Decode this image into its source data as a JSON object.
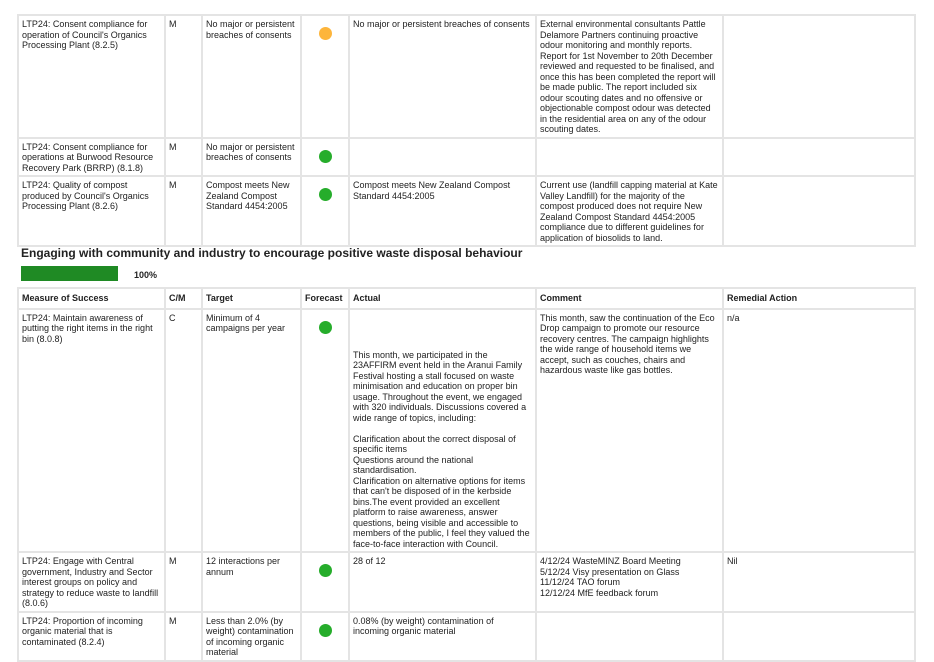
{
  "colors": {
    "amber": "#fdb53b",
    "green": "#26ad2b",
    "progress": "#1f8a24"
  },
  "table1": {
    "rows": [
      {
        "measure": "LTP24: Consent compliance for operation of Council's Organics Processing Plant (8.2.5)",
        "cm": "M",
        "target": "No major or persistent breaches of consents",
        "forecast": "amber",
        "actual": "No major or persistent breaches of consents",
        "comment": "External environmental consultants Pattle Delamore Partners continuing proactive odour monitoring and monthly reports. Report for 1st November to 20th December reviewed and requested to be finalised, and once this has been completed the report will be made public. The report included six odour scouting dates and no offensive or objectionable compost odour was detected in the residential area on any of the odour scouting dates.",
        "remedial": ""
      },
      {
        "measure": "LTP24: Consent compliance for operations at Burwood Resource Recovery Park (BRRP) (8.1.8)",
        "cm": "M",
        "target": "No major or persistent breaches of consents",
        "forecast": "green",
        "actual": "",
        "comment": "",
        "remedial": ""
      },
      {
        "measure": "LTP24: Quality of compost produced by Council's Organics Processing Plant (8.2.6)",
        "cm": "M",
        "target": "Compost meets New Zealand Compost Standard 4454:2005",
        "forecast": "green",
        "actual": "Compost meets New Zealand Compost Standard 4454:2005",
        "comment": "Current use (landfill capping material at Kate Valley Landfill) for the majority of the compost produced does not require New Zealand Compost Standard 4454:2005 compliance due to different guidelines for application of biosolids to land.",
        "remedial": ""
      }
    ]
  },
  "section": {
    "title": "Engaging with community and industry to encourage positive waste disposal behaviour",
    "progress_percent": 100,
    "progress_label": "100%"
  },
  "table2": {
    "headers": {
      "measure": "Measure of Success",
      "cm": "C/M",
      "target": "Target",
      "forecast": "Forecast",
      "actual": "Actual",
      "comment": "Comment",
      "remedial": "Remedial Action"
    },
    "rows": [
      {
        "measure": "LTP24: Maintain awareness of putting the right items in the right bin (8.0.8)",
        "cm": "C",
        "target": "Minimum of 4 campaigns per year",
        "forecast": "green",
        "actual": "This month, we participated in the 23AFFIRM event held in the Aranui Family Festival hosting a stall focused on waste minimisation and education on proper bin usage. Throughout the event, we engaged with 320 individuals. Discussions covered a wide range of topics, including:\n\nClarification about the correct disposal of specific items\nQuestions around the national standardisation.\nClarification on alternative options for items that can't be disposed of in the kerbside bins.The event provided an excellent platform to raise awareness, answer questions, being visible and accessible to members of the public, I feel they valued the face-to-face interaction with Council.",
        "comment": "This month, saw the continuation of the Eco Drop campaign to promote our resource recovery centres. The campaign highlights the wide range of household items we accept, such as couches, chairs and hazardous waste like gas bottles.",
        "remedial": "n/a"
      },
      {
        "measure": "LTP24: Engage with Central government, Industry and Sector interest groups on policy and strategy to reduce waste to landfill (8.0.6)",
        "cm": "M",
        "target": "12 interactions per annum",
        "forecast": "green",
        "actual": "28 of 12",
        "comment": "4/12/24 WasteMINZ Board Meeting\n5/12/24 Visy presentation on Glass\n11/12/24 TAO forum\n12/12/24 MfE feedback forum",
        "remedial": "Nil"
      },
      {
        "measure": "LTP24: Proportion of incoming organic material that is contaminated (8.2.4)",
        "cm": "M",
        "target": "Less than 2.0% (by weight) contamination of incoming organic material",
        "forecast": "green",
        "actual": "0.08% (by weight) contamination of incoming organic material",
        "comment": "",
        "remedial": ""
      }
    ]
  }
}
